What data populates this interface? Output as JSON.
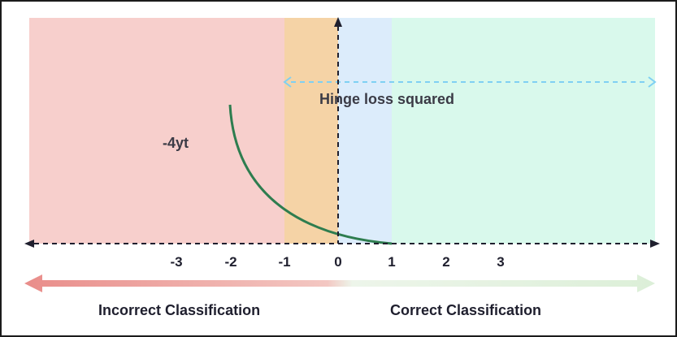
{
  "diagram": {
    "loss_label": "Hinge loss squared",
    "curve_label": "-4yt",
    "x_ticks": [
      "-3",
      "-2",
      "-1",
      "0",
      "1",
      "2",
      "3"
    ],
    "incorrect_label": "Incorrect Classification",
    "correct_label": "Correct Classification",
    "colors": {
      "incorrect_region": "#f7cfcc",
      "margin_left_region": "#f5d3a6",
      "margin_right_region": "#dcecfb",
      "correct_region": "#d9f9ec",
      "curve": "#2e7d4f",
      "dashed_arrow": "#7fd0f3",
      "axes": "#1f1f2e",
      "incorrect_arrow": "#e98d8a",
      "correct_arrow": "#e2f0df"
    }
  }
}
